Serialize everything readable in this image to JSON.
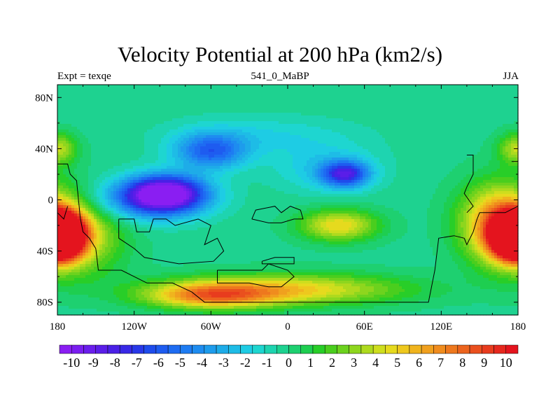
{
  "chart_data": {
    "type": "heatmap",
    "title": "Velocity Potential at 200 hPa (km2/s)",
    "left_label": "Expt = texqe",
    "center_label": "541_0_MaBP",
    "right_label": "JJA",
    "x_ticks": [
      "180",
      "120W",
      "60W",
      "0",
      "60E",
      "120E",
      "180"
    ],
    "x_tick_values": [
      -180,
      -120,
      -60,
      0,
      60,
      120,
      180
    ],
    "y_ticks": [
      "80N",
      "40N",
      "0",
      "40S",
      "80S"
    ],
    "y_tick_values": [
      80,
      40,
      0,
      -40,
      -80
    ],
    "xlim": [
      -180,
      180
    ],
    "ylim": [
      -90,
      90
    ],
    "colorbar_labels": [
      "-10",
      "-9",
      "-8",
      "-7",
      "-6",
      "-5",
      "-4",
      "-3",
      "-2",
      "-1",
      "0",
      "1",
      "2",
      "3",
      "4",
      "5",
      "6",
      "7",
      "8",
      "9",
      "10"
    ],
    "colorbar_levels": [
      -10.5,
      -10,
      -9.5,
      -9,
      -8.5,
      -8,
      -7.5,
      -7,
      -6.5,
      -6,
      -5.5,
      -5,
      -4.5,
      -4,
      -3.5,
      -3,
      -2.5,
      -2,
      -1.5,
      -1,
      -0.5,
      0,
      0.5,
      1,
      1.5,
      2,
      2.5,
      3,
      3.5,
      4,
      4.5,
      5,
      5.5,
      6,
      6.5,
      7,
      7.5,
      8,
      8.5,
      9,
      9.5,
      10,
      10.5
    ],
    "colors": [
      "#8a1ef2",
      "#7a1ef0",
      "#6a1eec",
      "#5a1ee8",
      "#4a20e6",
      "#3828e6",
      "#2838e8",
      "#1e4cec",
      "#1e5cf0",
      "#1e6cf2",
      "#1e7cf2",
      "#1e8cf0",
      "#1e9cec",
      "#1eace8",
      "#1ebce6",
      "#1ecce4",
      "#1ed6d0",
      "#1ed4b0",
      "#1ed290",
      "#1ed070",
      "#1ece50",
      "#28ce28",
      "#4ace1e",
      "#6cd21e",
      "#8ed61e",
      "#aeda1e",
      "#cede1e",
      "#e6da1e",
      "#eec81e",
      "#f0b41e",
      "#f0a01e",
      "#f08c1e",
      "#ee781e",
      "#ec641e",
      "#ea501e",
      "#e83c1e",
      "#e6281e",
      "#e4141e"
    ],
    "field_centers": [
      {
        "lon": -95,
        "lat": 5,
        "value": -10.2,
        "lon_scale": 30,
        "lat_scale": 14
      },
      {
        "lon": -112,
        "lat": 0,
        "value": -5,
        "lon_scale": 45,
        "lat_scale": 16
      },
      {
        "lon": -60,
        "lat": 38,
        "value": -6,
        "lon_scale": 28,
        "lat_scale": 14
      },
      {
        "lon": 45,
        "lat": 20,
        "value": -7.5,
        "lon_scale": 18,
        "lat_scale": 10
      },
      {
        "lon": 30,
        "lat": 25,
        "value": -3,
        "lon_scale": 40,
        "lat_scale": 18
      },
      {
        "lon": -20,
        "lat": 50,
        "value": -2.5,
        "lon_scale": 70,
        "lat_scale": 15
      },
      {
        "lon": -175,
        "lat": -28,
        "value": 10.5,
        "lon_scale": 16,
        "lat_scale": 16
      },
      {
        "lon": 175,
        "lat": -28,
        "value": 10.5,
        "lon_scale": 16,
        "lat_scale": 16
      },
      {
        "lon": 165,
        "lat": -18,
        "value": 5,
        "lon_scale": 30,
        "lat_scale": 30
      },
      {
        "lon": -165,
        "lat": -28,
        "value": 3,
        "lon_scale": 35,
        "lat_scale": 30
      },
      {
        "lon": 180,
        "lat": 40,
        "value": 2.5,
        "lon_scale": 15,
        "lat_scale": 12
      },
      {
        "lon": 40,
        "lat": -20,
        "value": 3.5,
        "lon_scale": 30,
        "lat_scale": 12
      },
      {
        "lon": 0,
        "lat": -70,
        "value": 3.5,
        "lon_scale": 90,
        "lat_scale": 12
      },
      {
        "lon": -60,
        "lat": -75,
        "value": 4.5,
        "lon_scale": 50,
        "lat_scale": 10
      }
    ],
    "field_background": -1.2,
    "coastlines": [
      [
        [
          -180,
          28
        ],
        [
          -172,
          28
        ],
        [
          -170,
          20
        ],
        [
          -165,
          15
        ],
        [
          -162,
          -15
        ],
        [
          -160,
          -25
        ],
        [
          -155,
          -30
        ],
        [
          -150,
          -38
        ],
        [
          -148,
          -55
        ],
        [
          -130,
          -55
        ],
        [
          -110,
          -65
        ],
        [
          -90,
          -65
        ],
        [
          -75,
          -72
        ],
        [
          -65,
          -80
        ],
        [
          0,
          -80
        ],
        [
          60,
          -80
        ],
        [
          110,
          -80
        ],
        [
          115,
          -55
        ],
        [
          118,
          -30
        ],
        [
          130,
          -28
        ],
        [
          138,
          -30
        ],
        [
          140,
          -35
        ],
        [
          145,
          -25
        ],
        [
          148,
          -15
        ],
        [
          150,
          -10
        ],
        [
          170,
          -10
        ],
        [
          180,
          -5
        ]
      ],
      [
        [
          -180,
          -10
        ],
        [
          -175,
          -15
        ],
        [
          -172,
          -5
        ]
      ],
      [
        [
          -132,
          -15
        ],
        [
          -120,
          -15
        ],
        [
          -118,
          -25
        ],
        [
          -108,
          -25
        ],
        [
          -105,
          -15
        ],
        [
          -95,
          -15
        ],
        [
          -88,
          -20
        ],
        [
          -70,
          -15
        ],
        [
          -60,
          -20
        ],
        [
          -65,
          -35
        ],
        [
          -55,
          -30
        ],
        [
          -50,
          -40
        ],
        [
          -58,
          -48
        ],
        [
          -85,
          -50
        ],
        [
          -112,
          -45
        ],
        [
          -120,
          -38
        ],
        [
          -132,
          -30
        ],
        [
          -132,
          -15
        ]
      ],
      [
        [
          -28,
          -15
        ],
        [
          -25,
          -8
        ],
        [
          -10,
          -5
        ],
        [
          -5,
          -10
        ],
        [
          2,
          -5
        ],
        [
          10,
          -8
        ],
        [
          12,
          -15
        ],
        [
          5,
          -15
        ],
        [
          -5,
          -18
        ],
        [
          -15,
          -18
        ],
        [
          -28,
          -15
        ]
      ],
      [
        [
          -55,
          -55
        ],
        [
          -20,
          -55
        ],
        [
          -15,
          -50
        ],
        [
          0,
          -55
        ],
        [
          5,
          -60
        ],
        [
          -5,
          -68
        ],
        [
          -15,
          -68
        ],
        [
          -30,
          -65
        ],
        [
          -55,
          -65
        ],
        [
          -55,
          -55
        ]
      ],
      [
        [
          -20,
          -48
        ],
        [
          -10,
          -45
        ],
        [
          5,
          -45
        ],
        [
          5,
          -50
        ],
        [
          -20,
          -50
        ],
        [
          -20,
          -48
        ]
      ],
      [
        [
          140,
          35
        ],
        [
          145,
          35
        ],
        [
          145,
          20
        ],
        [
          140,
          10
        ],
        [
          138,
          5
        ],
        [
          145,
          -5
        ],
        [
          140,
          -10
        ]
      ],
      [
        [
          175,
          30
        ],
        [
          180,
          30
        ]
      ]
    ]
  }
}
